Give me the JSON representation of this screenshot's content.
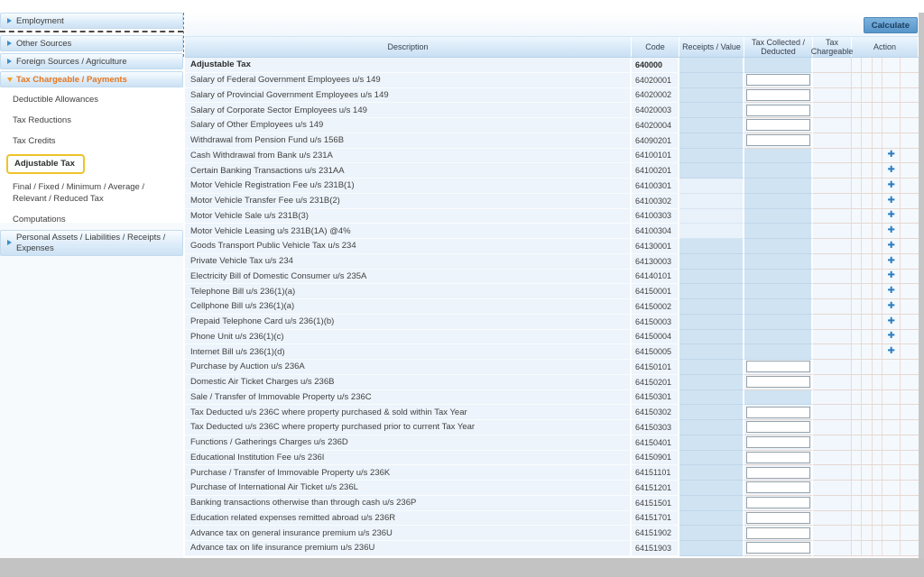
{
  "app": {
    "toolbar": {
      "calculate_label": "Calculate"
    }
  },
  "colors": {
    "accent_orange": "#e4761f",
    "selected_outline_yellow": "#edc32a",
    "group_item_blue": "#cce2f4",
    "shaded_cell_blue": "#cfe3f3",
    "muted_cell_blue": "#e9f1fa",
    "plus_icon_blue": "#2b7cc0",
    "calculate_button_blue": "#5796c9"
  },
  "sidebar": {
    "items": [
      {
        "label": "Employment",
        "type": "group",
        "state": "collapsed",
        "separator_below": true
      },
      {
        "label": "Other Sources",
        "type": "group",
        "state": "collapsed"
      },
      {
        "label": "Foreign Sources / Agriculture",
        "type": "group",
        "state": "collapsed"
      },
      {
        "label": "Tax Chargeable / Payments",
        "type": "group",
        "state": "expanded",
        "accent": true
      },
      {
        "label": "Deductible Allowances",
        "type": "sub"
      },
      {
        "label": "Tax Reductions",
        "type": "sub"
      },
      {
        "label": "Tax Credits",
        "type": "sub"
      },
      {
        "label": "Adjustable Tax",
        "type": "sub",
        "selected": true
      },
      {
        "label": "Final / Fixed / Minimum / Average / Relevant / Reduced Tax",
        "type": "sub"
      },
      {
        "label": "Computations",
        "type": "sub"
      },
      {
        "label": "Personal Assets / Liabilities / Receipts / Expenses",
        "type": "group",
        "state": "collapsed",
        "two_line": true
      }
    ]
  },
  "table": {
    "headers": [
      "Description",
      "Code",
      "Receipts / Value",
      "Tax Collected / Deducted",
      "Tax Chargeable",
      "Action"
    ],
    "rows": [
      {
        "desc": "Adjustable Tax",
        "code": "640000",
        "bold": true,
        "receipts": "shaded",
        "tax": "shaded",
        "action": false
      },
      {
        "desc": "Salary of Federal Government Employees u/s 149",
        "code": "64020001",
        "receipts": "shaded",
        "tax": "input",
        "action": false
      },
      {
        "desc": "Salary of Provincial Government Employees u/s 149",
        "code": "64020002",
        "receipts": "shaded",
        "tax": "input",
        "action": false
      },
      {
        "desc": "Salary of Corporate Sector Employees u/s 149",
        "code": "64020003",
        "receipts": "shaded",
        "tax": "input",
        "action": false
      },
      {
        "desc": "Salary of Other Employees u/s 149",
        "code": "64020004",
        "receipts": "shaded",
        "tax": "input",
        "action": false
      },
      {
        "desc": "Withdrawal from Pension Fund u/s 156B",
        "code": "64090201",
        "receipts": "shaded",
        "tax": "input",
        "action": false
      },
      {
        "desc": "Cash Withdrawal from Bank u/s 231A",
        "code": "64100101",
        "receipts": "shaded",
        "tax": "shaded",
        "action": true
      },
      {
        "desc": "Certain Banking Transactions u/s 231AA",
        "code": "64100201",
        "receipts": "shaded",
        "tax": "shaded",
        "action": true
      },
      {
        "desc": "Motor Vehicle Registration Fee u/s 231B(1)",
        "code": "64100301",
        "receipts": "light",
        "tax": "shaded",
        "action": true
      },
      {
        "desc": "Motor Vehicle Transfer Fee u/s 231B(2)",
        "code": "64100302",
        "receipts": "light",
        "tax": "shaded",
        "action": true
      },
      {
        "desc": "Motor Vehicle Sale u/s 231B(3)",
        "code": "64100303",
        "receipts": "light",
        "tax": "shaded",
        "action": true
      },
      {
        "desc": "Motor Vehicle Leasing u/s 231B(1A) @4%",
        "code": "64100304",
        "receipts": "light",
        "tax": "shaded",
        "action": true
      },
      {
        "desc": "Goods Transport Public Vehicle Tax u/s 234",
        "code": "64130001",
        "receipts": "shaded",
        "tax": "shaded",
        "action": true
      },
      {
        "desc": "Private Vehicle Tax u/s 234",
        "code": "64130003",
        "receipts": "shaded",
        "tax": "shaded",
        "action": true
      },
      {
        "desc": "Electricity Bill of Domestic Consumer u/s 235A",
        "code": "64140101",
        "receipts": "shaded",
        "tax": "shaded",
        "action": true
      },
      {
        "desc": "Telephone Bill u/s 236(1)(a)",
        "code": "64150001",
        "receipts": "shaded",
        "tax": "shaded",
        "action": true
      },
      {
        "desc": "Cellphone Bill u/s 236(1)(a)",
        "code": "64150002",
        "receipts": "shaded",
        "tax": "shaded",
        "action": true
      },
      {
        "desc": "Prepaid Telephone Card u/s 236(1)(b)",
        "code": "64150003",
        "receipts": "shaded",
        "tax": "shaded",
        "action": true
      },
      {
        "desc": "Phone Unit u/s 236(1)(c)",
        "code": "64150004",
        "receipts": "shaded",
        "tax": "shaded",
        "action": true
      },
      {
        "desc": "Internet Bill u/s 236(1)(d)",
        "code": "64150005",
        "receipts": "shaded",
        "tax": "shaded",
        "action": true
      },
      {
        "desc": "Purchase by Auction u/s 236A",
        "code": "64150101",
        "receipts": "shaded",
        "tax": "input",
        "action": false
      },
      {
        "desc": "Domestic Air Ticket Charges u/s 236B",
        "code": "64150201",
        "receipts": "shaded",
        "tax": "input",
        "action": false
      },
      {
        "desc": "Sale / Transfer of Immovable Property u/s 236C",
        "code": "64150301",
        "receipts": "shaded",
        "tax": "shaded",
        "action": false
      },
      {
        "desc": "Tax Deducted u/s 236C where property purchased & sold within Tax Year",
        "code": "64150302",
        "receipts": "shaded",
        "tax": "input",
        "action": false
      },
      {
        "desc": "Tax Deducted u/s 236C where property purchased prior to current Tax Year",
        "code": "64150303",
        "receipts": "shaded",
        "tax": "input",
        "action": false
      },
      {
        "desc": "Functions / Gatherings Charges u/s 236D",
        "code": "64150401",
        "receipts": "shaded",
        "tax": "input",
        "action": false
      },
      {
        "desc": "Educational Institution Fee u/s 236I",
        "code": "64150901",
        "receipts": "shaded",
        "tax": "input",
        "action": false
      },
      {
        "desc": "Purchase / Transfer of Immovable Property u/s 236K",
        "code": "64151101",
        "receipts": "shaded",
        "tax": "input",
        "action": false
      },
      {
        "desc": "Purchase of International Air Ticket u/s 236L",
        "code": "64151201",
        "receipts": "shaded",
        "tax": "input",
        "action": false
      },
      {
        "desc": "Banking transactions otherwise than through cash u/s 236P",
        "code": "64151501",
        "receipts": "shaded",
        "tax": "input",
        "action": false
      },
      {
        "desc": "Education related expenses remitted abroad u/s 236R",
        "code": "64151701",
        "receipts": "shaded",
        "tax": "input",
        "action": false
      },
      {
        "desc": "Advance tax on general insurance premium u/s 236U",
        "code": "64151902",
        "receipts": "shaded",
        "tax": "input",
        "action": false
      },
      {
        "desc": "Advance tax on life insurance premium u/s 236U",
        "code": "64151903",
        "receipts": "shaded",
        "tax": "input",
        "action": false
      }
    ],
    "inputs": {
      "value": "",
      "placeholder": ""
    },
    "plus_icon": "✚"
  }
}
